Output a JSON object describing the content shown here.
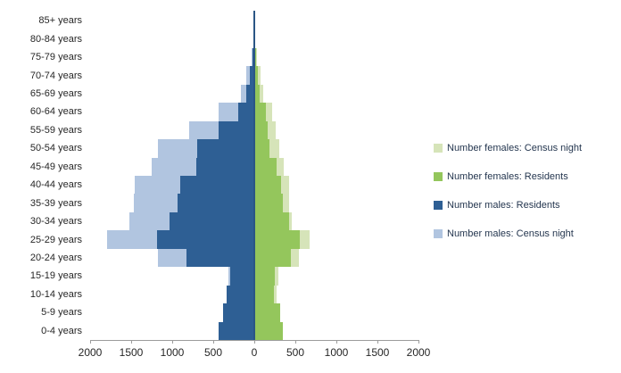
{
  "chart_data": {
    "type": "bar",
    "subtype": "population-pyramid",
    "orientation": "horizontal",
    "title": "",
    "xlabel": "",
    "ylabel": "",
    "grid": false,
    "legend_position": "right",
    "categories": [
      "85+ years",
      "80-84 years",
      "75-79 years",
      "70-74 years",
      "65-69 years",
      "60-64 years",
      "55-59 years",
      "50-54 years",
      "45-49 years",
      "40-44 years",
      "35-39 years",
      "30-34 years",
      "25-29 years",
      "20-24 years",
      "15-19 years",
      "10-14 years",
      "5-9 years",
      "0-4 years"
    ],
    "series": [
      {
        "name": "Number females: Census night",
        "side": "right",
        "color": "#d6e4b9",
        "values": [
          5,
          10,
          30,
          75,
          110,
          220,
          265,
          300,
          355,
          420,
          420,
          460,
          670,
          540,
          295,
          275,
          315,
          340
        ]
      },
      {
        "name": "Number females: Residents",
        "side": "right",
        "color": "#94c65c",
        "values": [
          5,
          10,
          20,
          40,
          60,
          145,
          165,
          190,
          275,
          330,
          350,
          420,
          550,
          450,
          255,
          240,
          320,
          345
        ]
      },
      {
        "name": "Number males: Residents",
        "side": "left",
        "color": "#2e5f94",
        "values": [
          10,
          15,
          25,
          55,
          100,
          200,
          440,
          700,
          705,
          905,
          940,
          1030,
          1190,
          825,
          295,
          340,
          385,
          430
        ]
      },
      {
        "name": "Number males: Census night",
        "side": "left",
        "color": "#b1c5e0",
        "values": [
          10,
          15,
          35,
          100,
          165,
          440,
          790,
          1170,
          1255,
          1460,
          1465,
          1520,
          1795,
          1175,
          310,
          335,
          380,
          425
        ]
      }
    ],
    "x_axis": {
      "max_each_side": 2000,
      "tick_step": 500,
      "tick_labels": [
        "2000",
        "1500",
        "1000",
        "500",
        "0",
        "500",
        "1000",
        "1500",
        "2000"
      ]
    }
  }
}
